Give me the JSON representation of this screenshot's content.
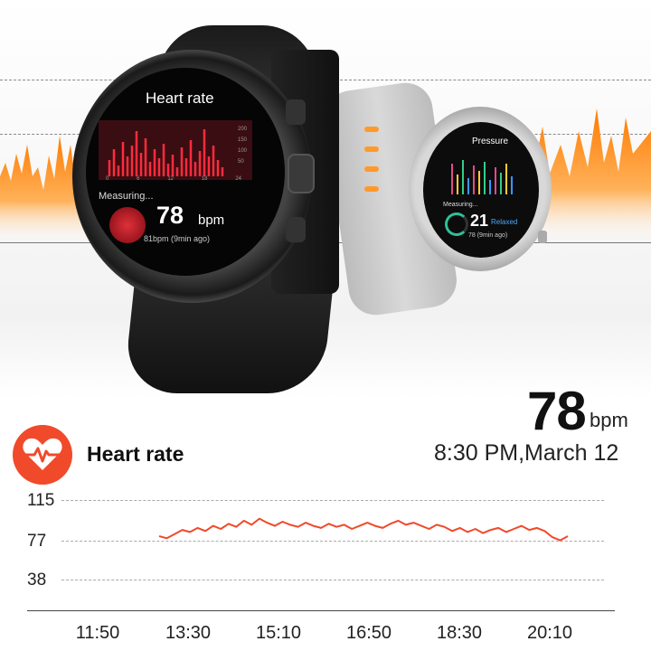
{
  "watch_left": {
    "title": "Heart rate",
    "chart_ticks": [
      "200",
      "150",
      "100",
      "50"
    ],
    "x_ticks": [
      "0",
      "6",
      "12",
      "18",
      "24"
    ],
    "status": "Measuring...",
    "value": "78",
    "unit": "bpm",
    "sub": "81bpm (9min ago)"
  },
  "watch_right": {
    "title": "Pressure",
    "status": "Measuring...",
    "value": "21",
    "state": "Relaxed",
    "sub": "78 (9min ago)"
  },
  "reading": {
    "value": "78",
    "unit": "bpm",
    "timestamp": "8:30 PM,March 12"
  },
  "section": {
    "title": "Heart rate"
  },
  "chart_data": {
    "type": "line",
    "title": "",
    "xlabel": "",
    "ylabel": "",
    "y_ticks": [
      115,
      77,
      38
    ],
    "x_ticks": [
      "11:50",
      "13:30",
      "15:10",
      "16:50",
      "18:30",
      "20:10"
    ],
    "series": [
      {
        "values": [
          80,
          78,
          82,
          86,
          84,
          88,
          85,
          90,
          87,
          92,
          89,
          95,
          91,
          97,
          93,
          90,
          94,
          91,
          89,
          93,
          90,
          88,
          92,
          89,
          91,
          87,
          90,
          93,
          90,
          88,
          92,
          95,
          91,
          93,
          90,
          87,
          91,
          89,
          85,
          88,
          84,
          87,
          83,
          86,
          88,
          84,
          87,
          90,
          86,
          88,
          85,
          79,
          76,
          80
        ]
      }
    ],
    "ylim": [
      30,
      125
    ],
    "line_color": "#f04a2a"
  },
  "colors": {
    "accent": "#f04a2a",
    "orange": "#ff8a1a"
  }
}
